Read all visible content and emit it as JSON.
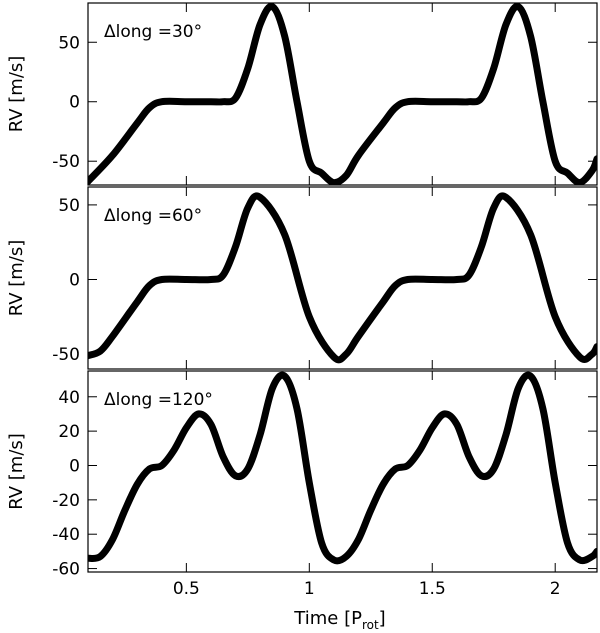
{
  "chart_data": [
    {
      "type": "line",
      "label": "Δlong =30°",
      "ylabel": "RV [m/s]",
      "xlim": [
        0.1,
        2.17
      ],
      "ylim": [
        -70,
        83
      ],
      "x_ticks": [
        0.5,
        1,
        1.5,
        2
      ],
      "y_ticks": [
        -50,
        0,
        50
      ],
      "y_tick_labels": [
        "-50",
        "0",
        "50"
      ],
      "series": [
        {
          "x": [
            0.1,
            0.2,
            0.3,
            0.35,
            0.4,
            0.5,
            0.6,
            0.65,
            0.7,
            0.75,
            0.8,
            0.85,
            0.9,
            0.95,
            1.0,
            1.05,
            1.1,
            1.15,
            1.2,
            1.3,
            1.35,
            1.4,
            1.5,
            1.6,
            1.65,
            1.7,
            1.75,
            1.8,
            1.85,
            1.9,
            1.95,
            2.0,
            2.05,
            2.1,
            2.15,
            2.17
          ],
          "y": [
            -67,
            -45,
            -18,
            -5,
            0,
            0,
            0,
            0,
            3,
            28,
            65,
            80,
            55,
            0,
            -50,
            -60,
            -68,
            -62,
            -45,
            -18,
            -5,
            0,
            0,
            0,
            0,
            3,
            28,
            65,
            80,
            55,
            0,
            -50,
            -60,
            -68,
            -58,
            -48
          ]
        }
      ]
    },
    {
      "type": "line",
      "label": "Δlong =60°",
      "ylabel": "RV [m/s]",
      "xlim": [
        0.1,
        2.17
      ],
      "ylim": [
        -60,
        62
      ],
      "x_ticks": [
        0.5,
        1,
        1.5,
        2
      ],
      "y_ticks": [
        -50,
        0,
        50
      ],
      "y_tick_labels": [
        "-50",
        "0",
        "50"
      ],
      "series": [
        {
          "x": [
            0.1,
            0.15,
            0.2,
            0.3,
            0.35,
            0.4,
            0.5,
            0.6,
            0.65,
            0.7,
            0.75,
            0.8,
            0.9,
            1.0,
            1.1,
            1.15,
            1.2,
            1.3,
            1.35,
            1.4,
            1.5,
            1.6,
            1.65,
            1.7,
            1.75,
            1.8,
            1.9,
            2.0,
            2.1,
            2.15,
            2.17
          ],
          "y": [
            -51,
            -48,
            -38,
            -15,
            -4,
            0,
            0,
            0,
            3,
            22,
            48,
            55,
            30,
            -25,
            -52,
            -50,
            -38,
            -15,
            -4,
            0,
            0,
            0,
            3,
            22,
            48,
            55,
            30,
            -25,
            -52,
            -50,
            -45
          ]
        }
      ]
    },
    {
      "type": "line",
      "label": "Δlong =120°",
      "ylabel": "RV [m/s]",
      "xlabel": "Time [P",
      "xlabel_sub": "rot",
      "xlabel_end": "]",
      "xlim": [
        0.1,
        2.17
      ],
      "ylim": [
        -62,
        55
      ],
      "x_ticks": [
        0.5,
        1,
        1.5,
        2
      ],
      "x_tick_labels": [
        "0.5",
        "1",
        "1.5",
        "2"
      ],
      "y_ticks": [
        -60,
        -40,
        -20,
        0,
        20,
        40
      ],
      "y_tick_labels": [
        "-60",
        "-40",
        "-20",
        "0",
        "20",
        "40"
      ],
      "series": [
        {
          "x": [
            0.1,
            0.15,
            0.2,
            0.25,
            0.3,
            0.35,
            0.4,
            0.45,
            0.5,
            0.55,
            0.6,
            0.65,
            0.7,
            0.75,
            0.8,
            0.85,
            0.9,
            0.95,
            1.0,
            1.05,
            1.1,
            1.15,
            1.2,
            1.25,
            1.3,
            1.35,
            1.4,
            1.45,
            1.5,
            1.55,
            1.6,
            1.65,
            1.7,
            1.75,
            1.8,
            1.85,
            1.9,
            1.95,
            2.0,
            2.05,
            2.1,
            2.15,
            2.17
          ],
          "y": [
            -54,
            -53,
            -43,
            -26,
            -11,
            -2,
            0,
            9,
            22,
            30,
            24,
            5,
            -6,
            -2,
            18,
            45,
            52,
            33,
            -10,
            -45,
            -55,
            -53,
            -43,
            -26,
            -11,
            -2,
            0,
            9,
            22,
            30,
            24,
            5,
            -6,
            -2,
            18,
            45,
            52,
            33,
            -10,
            -45,
            -55,
            -53,
            -50
          ]
        }
      ]
    }
  ]
}
